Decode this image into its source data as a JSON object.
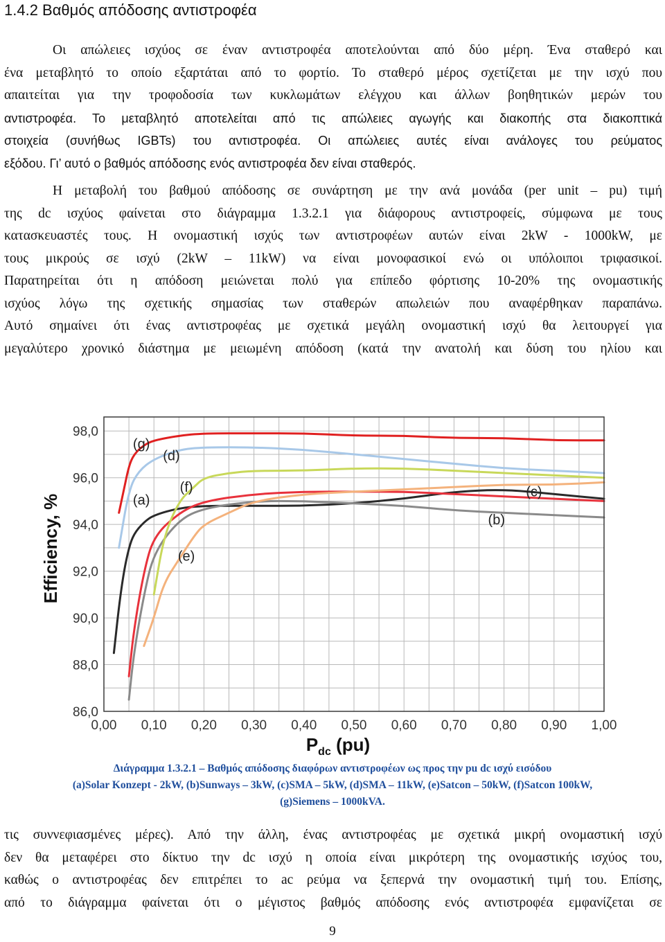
{
  "heading": "1.4.2 Βαθμός απόδοσης αντιστροφέα",
  "paragraph_1": [
    "Οι απώλειες ισχύος σε έναν αντιστροφέα αποτελούνται από δύο μέρη. Ένα σταθερό και",
    "ένα μεταβλητό το οποίο εξαρτάται από το φορτίο. Το σταθερό μέρος σχετίζεται με την ισχύ που",
    "απαιτείται για την τροφοδοσία των κυκλωμάτων ελέγχου και άλλων βοηθητικών μερών του",
    "αντιστροφέα. Το μεταβλητό αποτελείται από τις απώλειες αγωγής και διακοπής στα διακοπτικά",
    "στοιχεία (συνήθως IGBTs) του αντιστροφέα. Οι απώλειες αυτές είναι ανάλογες του ρεύματος",
    "εξόδου. Γι’ αυτό ο βαθμός απόδοσης ενός αντιστροφέα δεν είναι σταθερός."
  ],
  "paragraph_2": [
    "Η μεταβολή του βαθμού απόδοσης σε συνάρτηση με την ανά μονάδα (per unit – pu) τιμή",
    "της dc ισχύος φαίνεται στο διάγραμμα 1.3.2.1 για διάφορους αντιστροφείς, σύμφωνα με τους",
    "κατασκευαστές τους. Η ονομαστική ισχύς των αντιστροφέων αυτών είναι 2kW - 1000kW, με",
    "τους μικρούς σε ισχύ (2kW – 11kW) να είναι μονοφασικοί ενώ οι υπόλοιποι τριφασικοί.",
    "Παρατηρείται ότι η απόδοση μειώνεται πολύ για επίπεδο φόρτισης 10-20% της ονομαστικής",
    "ισχύος λόγω της σχετικής σημασίας των σταθερών απωλειών που αναφέρθηκαν παραπάνω.",
    "Αυτό σημαίνει ότι ένας αντιστροφέας με σχετικά μεγάλη ονομαστική ισχύ θα λειτουργεί για",
    "μεγαλύτερο χρονικό διάστημα με μειωμένη απόδοση (κατά την ανατολή και δύση του ηλίου και"
  ],
  "caption": {
    "line1": "Διάγραμμα 1.3.2.1 – Βαθμός απόδοσης διαφόρων αντιστροφέων ως προς την pu dc ισχύ εισόδου",
    "line2": "(a)Solar Konzept - 2kW, (b)Sunways – 3kW, (c)SMA – 5kW, (d)SMA – 11kW, (e)Satcon – 50kW, (f)Satcon 100kW,",
    "line3": "(g)Siemens – 1000kVA."
  },
  "paragraph_3": [
    "τις συννεφιασμένες μέρες). Από την άλλη, ένας αντιστροφέας με σχετικά μικρή ονομαστική ισχύ",
    "δεν θα μεταφέρει στο δίκτυο την dc ισχύ η οποία είναι μικρότερη της ονομαστικής ισχύος του,",
    "καθώς ο αντιστροφέας δεν επιτρέπει το ac ρεύμα να ξεπερνά την ονομαστική τιμή του. Επίσης,",
    "από το διάγραμμα φαίνεται ότι ο μέγιστος βαθμός απόδοσης ενός αντιστροφέα εμφανίζεται σε"
  ],
  "page_number": "9",
  "chart_data": {
    "type": "line",
    "title": "",
    "xlabel": "P",
    "xlabel_sub": "dc",
    "xlabel_unit": " (pu)",
    "ylabel": "Efficiency, %",
    "xlim": [
      0,
      1
    ],
    "ylim": [
      86,
      98.6
    ],
    "x_ticks": [
      "0,00",
      "0,10",
      "0,20",
      "0,30",
      "0,40",
      "0,50",
      "0,60",
      "0,70",
      "0,80",
      "0,90",
      "1,00"
    ],
    "x_tick_values": [
      0,
      0.1,
      0.2,
      0.3,
      0.4,
      0.5,
      0.6,
      0.7,
      0.8,
      0.9,
      1.0
    ],
    "y_ticks": [
      "86,0",
      "88,0",
      "90,0",
      "92,0",
      "94,0",
      "96,0",
      "98,0"
    ],
    "y_tick_values": [
      86,
      88,
      90,
      92,
      94,
      96,
      98
    ],
    "grid": true,
    "series": [
      {
        "name": "(a)",
        "color": "#2a2a2a",
        "x": [
          0.02,
          0.03,
          0.04,
          0.05,
          0.06,
          0.08,
          0.1,
          0.15,
          0.2,
          0.3,
          0.4,
          0.5,
          0.6,
          0.7,
          0.8,
          0.9,
          1.0
        ],
        "y": [
          88.5,
          90.5,
          92.0,
          93.0,
          93.6,
          94.1,
          94.4,
          94.7,
          94.8,
          94.8,
          94.8,
          94.9,
          95.1,
          95.4,
          95.5,
          95.3,
          95.1
        ]
      },
      {
        "name": "(b)",
        "color": "#8a8a8a",
        "x": [
          0.05,
          0.06,
          0.08,
          0.1,
          0.15,
          0.2,
          0.3,
          0.4,
          0.5,
          0.6,
          0.7,
          0.8,
          0.9,
          1.0
        ],
        "y": [
          86.5,
          88.5,
          91.0,
          92.8,
          94.2,
          94.7,
          95.0,
          95.0,
          94.9,
          94.8,
          94.6,
          94.5,
          94.4,
          94.3
        ]
      },
      {
        "name": "(c)",
        "color": "#e8323c",
        "x": [
          0.05,
          0.06,
          0.08,
          0.1,
          0.15,
          0.2,
          0.3,
          0.4,
          0.5,
          0.6,
          0.7,
          0.8,
          0.9,
          1.0
        ],
        "y": [
          87.5,
          89.5,
          92.0,
          93.5,
          94.5,
          95.0,
          95.3,
          95.4,
          95.4,
          95.4,
          95.3,
          95.2,
          95.1,
          95.0
        ]
      },
      {
        "name": "(d)",
        "color": "#a8c8e8",
        "x": [
          0.03,
          0.05,
          0.07,
          0.1,
          0.15,
          0.2,
          0.3,
          0.4,
          0.5,
          0.6,
          0.7,
          0.8,
          0.9,
          1.0
        ],
        "y": [
          93.0,
          95.5,
          96.3,
          96.8,
          97.2,
          97.3,
          97.3,
          97.2,
          97.0,
          96.8,
          96.6,
          96.4,
          96.3,
          96.2
        ]
      },
      {
        "name": "(e)",
        "color": "#f4b27c",
        "x": [
          0.08,
          0.1,
          0.12,
          0.15,
          0.18,
          0.2,
          0.25,
          0.3,
          0.4,
          0.5,
          0.6,
          0.7,
          0.8,
          0.9,
          1.0
        ],
        "y": [
          88.8,
          90.0,
          91.5,
          92.5,
          93.5,
          94.0,
          94.5,
          95.0,
          95.3,
          95.4,
          95.5,
          95.6,
          95.7,
          95.7,
          95.8
        ]
      },
      {
        "name": "(f)",
        "color": "#c8d85a",
        "x": [
          0.1,
          0.12,
          0.15,
          0.18,
          0.2,
          0.25,
          0.3,
          0.4,
          0.5,
          0.6,
          0.7,
          0.8,
          0.9,
          1.0
        ],
        "y": [
          91.0,
          93.5,
          95.0,
          95.6,
          96.0,
          96.2,
          96.3,
          96.3,
          96.4,
          96.4,
          96.3,
          96.2,
          96.1,
          96.0
        ]
      },
      {
        "name": "(g)",
        "color": "#e02020",
        "x": [
          0.03,
          0.04,
          0.05,
          0.06,
          0.08,
          0.1,
          0.15,
          0.2,
          0.3,
          0.4,
          0.5,
          0.6,
          0.7,
          0.8,
          0.9,
          1.0
        ],
        "y": [
          94.5,
          95.5,
          96.5,
          97.0,
          97.4,
          97.6,
          97.8,
          97.9,
          97.9,
          97.9,
          97.8,
          97.8,
          97.7,
          97.7,
          97.6,
          97.6
        ]
      }
    ],
    "series_labels": [
      {
        "text": "(g)",
        "x": 0.075,
        "y": 97.25
      },
      {
        "text": "(d)",
        "x": 0.135,
        "y": 96.75
      },
      {
        "text": "(f)",
        "x": 0.165,
        "y": 95.4
      },
      {
        "text": "(a)",
        "x": 0.075,
        "y": 94.85
      },
      {
        "text": "(e)",
        "x": 0.165,
        "y": 92.45
      },
      {
        "text": "(b)",
        "x": 0.785,
        "y": 94.0
      },
      {
        "text": "(c)",
        "x": 0.86,
        "y": 95.2
      }
    ]
  }
}
